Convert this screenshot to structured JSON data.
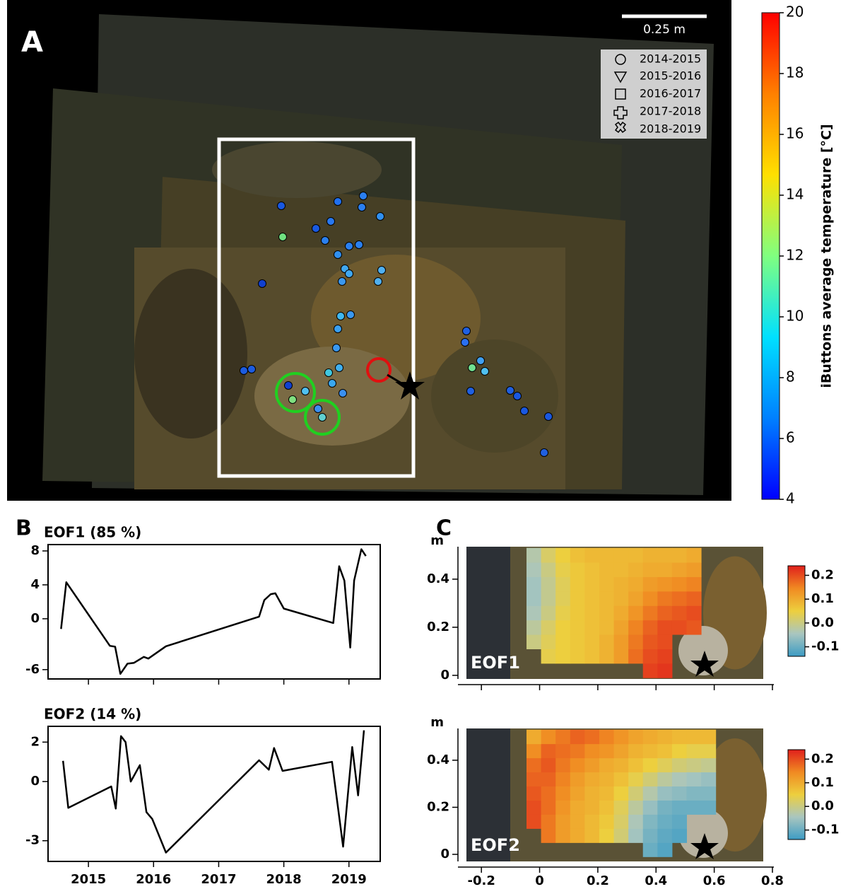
{
  "chart_data": [
    {
      "type": "photo",
      "panel": "A",
      "scale_bar": "0.25 m",
      "legend": [
        "2014-2015",
        "2015-2016",
        "2016-2017",
        "2017-2018",
        "2018-2019"
      ],
      "colorbar": {
        "label": "iButtons average temperature [°C]",
        "colormap": [
          "#0000ff",
          "#0080ff",
          "#00e0ff",
          "#80ff80",
          "#ffe000",
          "#ff8000",
          "#ff0000"
        ],
        "ylim": [
          4,
          20
        ],
        "yticks": [
          4,
          6,
          8,
          10,
          12,
          14,
          16,
          18,
          20
        ]
      }
    },
    {
      "type": "line",
      "panel": "B",
      "title": "EOF1 (85 %)",
      "color": "#000000",
      "x": [
        2014.58,
        2014.66,
        2015.33,
        2015.41,
        2015.49,
        2015.6,
        2015.7,
        2015.85,
        2015.92,
        2016.19,
        2017.62,
        2017.7,
        2017.8,
        2017.87,
        2018.0,
        2018.76,
        2018.85,
        2018.93,
        2019.02,
        2019.08,
        2019.19,
        2019.26
      ],
      "values": [
        -1.2,
        4.3,
        -3.2,
        -3.3,
        -6.5,
        -5.3,
        -5.2,
        -4.5,
        -4.7,
        -3.25,
        0.25,
        2.2,
        2.9,
        3.0,
        1.2,
        -0.5,
        6.2,
        4.5,
        -3.4,
        4.5,
        8.2,
        7.4
      ],
      "xlim": [
        2014.38,
        2019.48
      ],
      "ylim": [
        -7.1,
        8.75
      ],
      "xticks": [
        2015,
        2016,
        2017,
        2018,
        2019
      ],
      "yticks": [
        8,
        4,
        0,
        -6
      ]
    },
    {
      "type": "line",
      "title": "EOF2 (14 %)",
      "color": "#000000",
      "x": [
        2014.61,
        2014.69,
        2015.35,
        2015.42,
        2015.5,
        2015.57,
        2015.65,
        2015.79,
        2015.89,
        2015.98,
        2016.19,
        2017.62,
        2017.77,
        2017.85,
        2017.98,
        2018.74,
        2018.91,
        2019.05,
        2019.14,
        2019.23
      ],
      "values": [
        1.05,
        -1.33,
        -0.25,
        -1.37,
        2.3,
        2.0,
        0,
        0.83,
        -1.55,
        -1.9,
        -3.6,
        1.08,
        0.6,
        1.7,
        0.54,
        1.0,
        -3.3,
        1.75,
        -0.7,
        2.6
      ],
      "xlim": [
        2014.38,
        2019.48
      ],
      "ylim": [
        -4.05,
        2.8
      ],
      "xticks": [
        2015,
        2016,
        2017,
        2018,
        2019
      ],
      "yticks": [
        2,
        0,
        -3
      ]
    },
    {
      "type": "heatmap",
      "panel": "C",
      "label": "EOF1",
      "y_label": "m",
      "x": [
        -0.02,
        0.03,
        0.08,
        0.13,
        0.18,
        0.23,
        0.28,
        0.33,
        0.38,
        0.43,
        0.48,
        0.53
      ],
      "y": [
        0.02,
        0.08,
        0.14,
        0.2,
        0.26,
        0.32,
        0.38,
        0.44,
        0.5
      ],
      "z": [
        [
          null,
          null,
          null,
          null,
          null,
          null,
          null,
          null,
          0.21,
          0.22,
          null,
          null
        ],
        [
          null,
          0.04,
          0.05,
          0.06,
          0.07,
          0.09,
          0.12,
          0.17,
          0.2,
          0.21,
          null,
          null
        ],
        [
          0.0,
          0.03,
          0.05,
          0.06,
          0.07,
          0.09,
          0.12,
          0.16,
          0.19,
          0.2,
          null,
          null
        ],
        [
          -0.02,
          0.02,
          0.05,
          0.06,
          0.07,
          0.08,
          0.11,
          0.15,
          0.18,
          0.2,
          0.2,
          0.19
        ],
        [
          -0.04,
          0.0,
          0.04,
          0.06,
          0.07,
          0.08,
          0.1,
          0.13,
          0.16,
          0.18,
          0.19,
          0.2
        ],
        [
          -0.05,
          -0.01,
          0.03,
          0.06,
          0.07,
          0.08,
          0.09,
          0.11,
          0.14,
          0.16,
          0.17,
          0.18
        ],
        [
          -0.05,
          -0.01,
          0.03,
          0.06,
          0.07,
          0.08,
          0.09,
          0.1,
          0.12,
          0.13,
          0.14,
          0.15
        ],
        [
          -0.04,
          0.0,
          0.04,
          0.06,
          0.07,
          0.08,
          0.08,
          0.09,
          0.1,
          0.1,
          0.11,
          0.12
        ],
        [
          -0.03,
          0.02,
          0.05,
          0.07,
          0.08,
          0.08,
          0.08,
          0.08,
          0.09,
          0.09,
          0.09,
          0.1
        ]
      ],
      "xlim": [
        -0.3,
        0.8
      ],
      "ylim": [
        -0.015,
        0.535
      ],
      "xticks": [
        -0.2,
        0,
        0.2,
        0.4,
        0.6,
        0.8
      ],
      "yticks": [
        0,
        0.2,
        0.4
      ],
      "colormap": [
        "#3d9cc4",
        "#a9c6bf",
        "#edcf3e",
        "#f08a22",
        "#e0201c"
      ],
      "clim": [
        -0.14,
        0.24
      ],
      "cticks": [
        0.2,
        0.1,
        {
          "value": 0,
          "label": "0.0"
        },
        -0.1
      ]
    },
    {
      "type": "heatmap",
      "label": "EOF2",
      "y_label": "m",
      "x": [
        -0.02,
        0.03,
        0.08,
        0.13,
        0.18,
        0.23,
        0.28,
        0.33,
        0.38,
        0.43,
        0.48,
        0.53,
        0.58
      ],
      "y": [
        0.02,
        0.08,
        0.14,
        0.2,
        0.26,
        0.32,
        0.38,
        0.44,
        0.5
      ],
      "z": [
        [
          null,
          null,
          null,
          null,
          null,
          null,
          null,
          null,
          -0.1,
          -0.12,
          null,
          null,
          null
        ],
        [
          null,
          0.16,
          0.12,
          0.1,
          0.08,
          0.05,
          0.01,
          -0.05,
          -0.09,
          -0.11,
          -0.12,
          null,
          null
        ],
        [
          0.2,
          0.16,
          0.12,
          0.1,
          0.08,
          0.06,
          0.02,
          -0.04,
          -0.08,
          -0.1,
          -0.11,
          null,
          null
        ],
        [
          0.2,
          0.17,
          0.13,
          0.1,
          0.09,
          0.07,
          0.03,
          -0.02,
          -0.06,
          -0.09,
          -0.1,
          -0.1,
          -0.1
        ],
        [
          0.19,
          0.17,
          0.14,
          0.11,
          0.09,
          0.08,
          0.05,
          0.01,
          -0.03,
          -0.06,
          -0.07,
          -0.08,
          -0.08
        ],
        [
          0.18,
          0.18,
          0.15,
          0.12,
          0.1,
          0.09,
          0.07,
          0.04,
          0.01,
          -0.02,
          -0.04,
          -0.05,
          -0.06
        ],
        [
          0.17,
          0.19,
          0.16,
          0.14,
          0.12,
          0.1,
          0.09,
          0.07,
          0.05,
          0.03,
          0.01,
          0.0,
          -0.01
        ],
        [
          0.14,
          0.18,
          0.17,
          0.16,
          0.14,
          0.13,
          0.11,
          0.09,
          0.08,
          0.07,
          0.05,
          0.04,
          0.04
        ],
        [
          0.1,
          0.14,
          0.16,
          0.18,
          0.17,
          0.15,
          0.13,
          0.11,
          0.1,
          0.09,
          0.08,
          0.08,
          0.08
        ]
      ],
      "xlim": [
        -0.3,
        0.8
      ],
      "ylim": [
        -0.03,
        0.535
      ],
      "xticks": [
        -0.2,
        0,
        0.2,
        0.4,
        0.6,
        0.8
      ],
      "yticks": [
        0,
        0.2,
        0.4
      ],
      "colormap": [
        "#3d9cc4",
        "#a9c6bf",
        "#edcf3e",
        "#f08a22",
        "#e0201c"
      ],
      "clim": [
        -0.14,
        0.24
      ],
      "cticks": [
        0.2,
        0.1,
        {
          "value": 0,
          "label": "0.0"
        },
        -0.1
      ]
    }
  ]
}
